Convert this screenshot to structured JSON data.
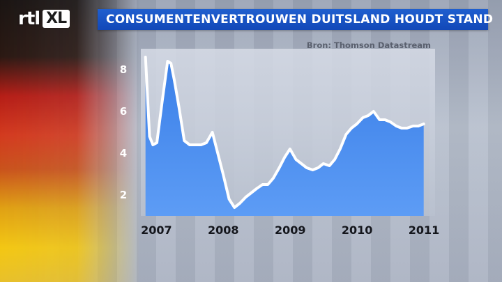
{
  "header": {
    "logo_rtl": "rtl",
    "logo_xl": "XL",
    "title": "CONSUMENTENVERTROUWEN DUITSLAND HOUDT STAND"
  },
  "chart_data": {
    "type": "area",
    "source": "Bron: Thomson Datastream",
    "title": "",
    "xlabel": "",
    "ylabel": "",
    "xlim": [
      2006.85,
      2011.25
    ],
    "ylim": [
      1.0,
      9.0
    ],
    "yticks": [
      2,
      4,
      6,
      8
    ],
    "xticks": [
      2007,
      2008,
      2009,
      2010,
      2011
    ],
    "series": [
      {
        "color": "#4f8ff0",
        "points": [
          [
            2006.92,
            8.6
          ],
          [
            2006.98,
            4.8
          ],
          [
            2007.03,
            4.4
          ],
          [
            2007.09,
            4.5
          ],
          [
            2007.17,
            6.5
          ],
          [
            2007.25,
            8.4
          ],
          [
            2007.3,
            8.3
          ],
          [
            2007.35,
            7.5
          ],
          [
            2007.42,
            6.2
          ],
          [
            2007.5,
            4.6
          ],
          [
            2007.58,
            4.4
          ],
          [
            2007.67,
            4.4
          ],
          [
            2007.75,
            4.4
          ],
          [
            2007.83,
            4.5
          ],
          [
            2007.92,
            5.0
          ],
          [
            2008.0,
            4.0
          ],
          [
            2008.08,
            3.0
          ],
          [
            2008.17,
            1.8
          ],
          [
            2008.25,
            1.4
          ],
          [
            2008.33,
            1.6
          ],
          [
            2008.42,
            1.9
          ],
          [
            2008.5,
            2.1
          ],
          [
            2008.58,
            2.3
          ],
          [
            2008.67,
            2.5
          ],
          [
            2008.75,
            2.5
          ],
          [
            2008.83,
            2.8
          ],
          [
            2008.92,
            3.3
          ],
          [
            2009.0,
            3.8
          ],
          [
            2009.08,
            4.2
          ],
          [
            2009.17,
            3.7
          ],
          [
            2009.25,
            3.5
          ],
          [
            2009.33,
            3.3
          ],
          [
            2009.42,
            3.2
          ],
          [
            2009.5,
            3.3
          ],
          [
            2009.58,
            3.5
          ],
          [
            2009.67,
            3.4
          ],
          [
            2009.75,
            3.7
          ],
          [
            2009.83,
            4.2
          ],
          [
            2009.92,
            4.9
          ],
          [
            2010.0,
            5.2
          ],
          [
            2010.08,
            5.4
          ],
          [
            2010.17,
            5.7
          ],
          [
            2010.25,
            5.8
          ],
          [
            2010.33,
            6.0
          ],
          [
            2010.42,
            5.6
          ],
          [
            2010.5,
            5.6
          ],
          [
            2010.58,
            5.5
          ],
          [
            2010.67,
            5.3
          ],
          [
            2010.75,
            5.2
          ],
          [
            2010.83,
            5.2
          ],
          [
            2010.92,
            5.3
          ],
          [
            2011.0,
            5.3
          ],
          [
            2011.08,
            5.4
          ]
        ]
      }
    ],
    "grid": false,
    "legend": "none"
  }
}
